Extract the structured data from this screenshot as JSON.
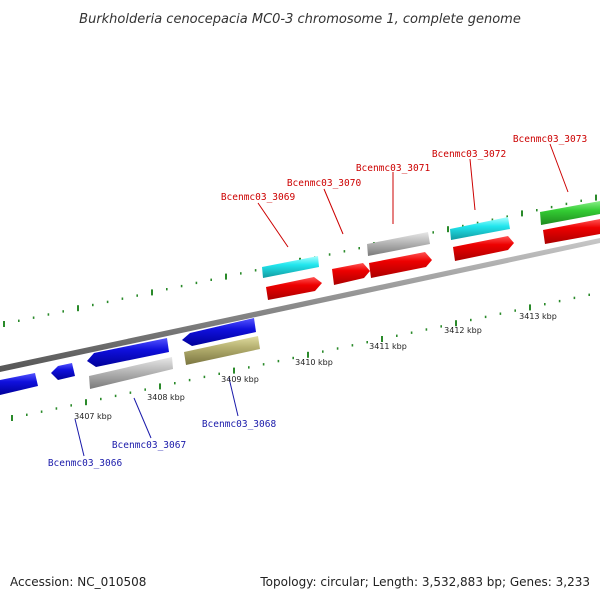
{
  "title": "Burkholderia cenocepacia MC0-3 chromosome 1, complete genome",
  "footer": {
    "accession": "Accession: NC_010508",
    "summary": "Topology: circular; Length: 3,532,883 bp; Genes: 3,233"
  },
  "colors": {
    "backbone": "#8c8c8c",
    "tick": "#2a8a2a",
    "plus_label": "#cc0000",
    "minus_label": "#1a1aaa",
    "red": "#ee0000",
    "cyan": "#22e6ee",
    "green": "#33cc33",
    "gray": "#bbbbbb",
    "blue": "#1010dd",
    "olive": "#b5b070"
  },
  "ticks": [
    "3407 kbp",
    "3408 kbp",
    "3409 kbp",
    "3410 kbp",
    "3411 kbp",
    "3412 kbp",
    "3413 kbp"
  ],
  "gene_labels": {
    "plus": [
      "Bcenmc03_3069",
      "Bcenmc03_3070",
      "Bcenmc03_3071",
      "Bcenmc03_3072",
      "Bcenmc03_3073"
    ],
    "minus": [
      "Bcenmc03_3066",
      "Bcenmc03_3067",
      "Bcenmc03_3068"
    ]
  }
}
